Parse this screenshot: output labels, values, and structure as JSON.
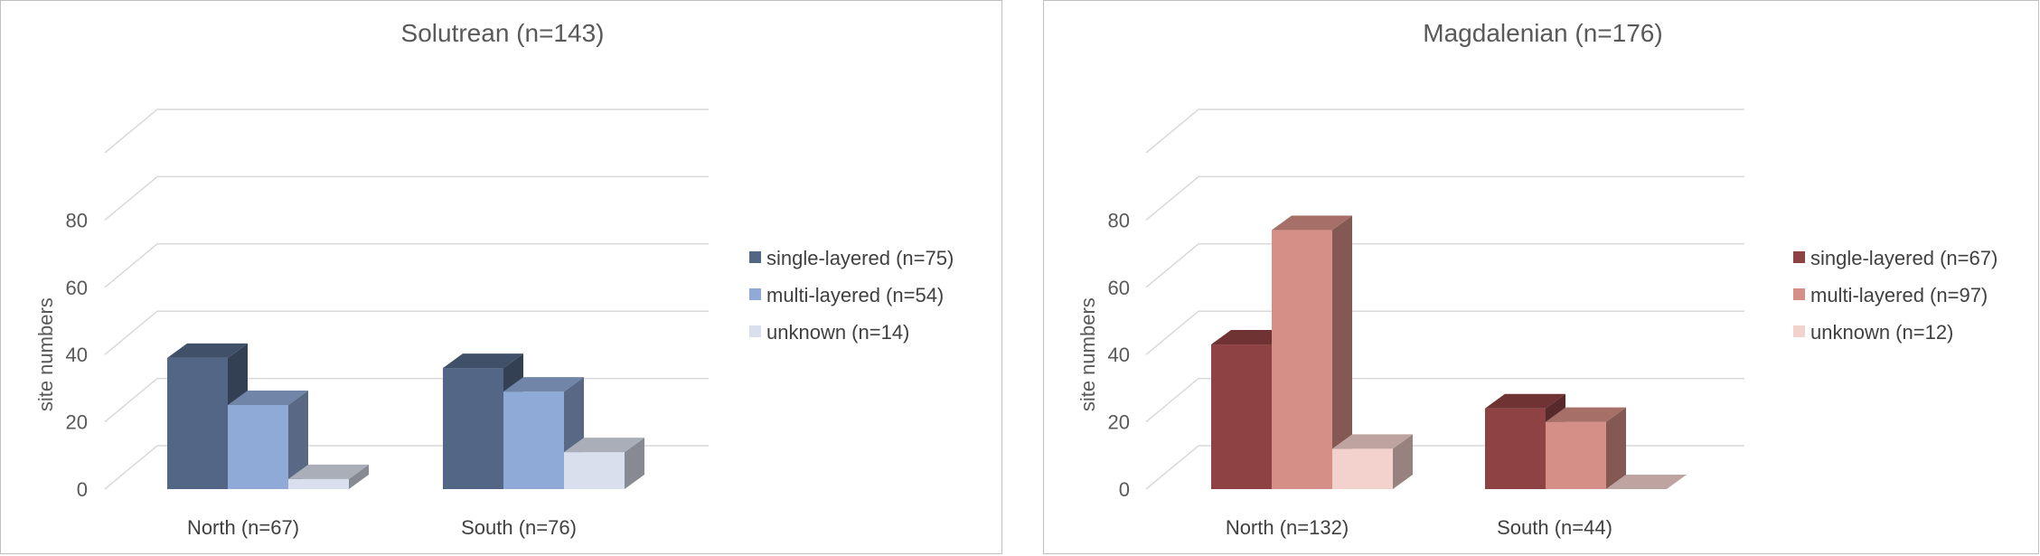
{
  "chart_data": [
    {
      "type": "bar",
      "title": "Solutrean (n=143)",
      "ylabel": "site numbers",
      "xlabel": "",
      "ylim": [
        0,
        80
      ],
      "yticks": [
        0,
        20,
        40,
        60,
        80
      ],
      "categories": [
        "North (n=67)",
        "South (n=76)"
      ],
      "series": [
        {
          "name": "single-layered (n=75)",
          "values": [
            39,
            36
          ],
          "color": "#536686"
        },
        {
          "name": "multi-layered (n=54)",
          "values": [
            25,
            29
          ],
          "color": "#8faad6"
        },
        {
          "name": "unknown (n=14)",
          "values": [
            3,
            11
          ],
          "color": "#d9dfec"
        }
      ],
      "legend": "right",
      "grid": true,
      "style": "3d-column"
    },
    {
      "type": "bar",
      "title": "Magdalenian (n=176)",
      "ylabel": "site numbers",
      "xlabel": "",
      "ylim": [
        0,
        80
      ],
      "yticks": [
        0,
        20,
        40,
        60,
        80
      ],
      "categories": [
        "North (n=132)",
        "South (n=44)"
      ],
      "series": [
        {
          "name": "single-layered (n=67)",
          "values": [
            43,
            24
          ],
          "color": "#8e4243"
        },
        {
          "name": "multi-layered (n=97)",
          "values": [
            77,
            20
          ],
          "color": "#d58f87"
        },
        {
          "name": "unknown (n=12)",
          "values": [
            12,
            0
          ],
          "color": "#f3d2cd"
        }
      ],
      "legend": "right",
      "grid": true,
      "style": "3d-column"
    }
  ]
}
